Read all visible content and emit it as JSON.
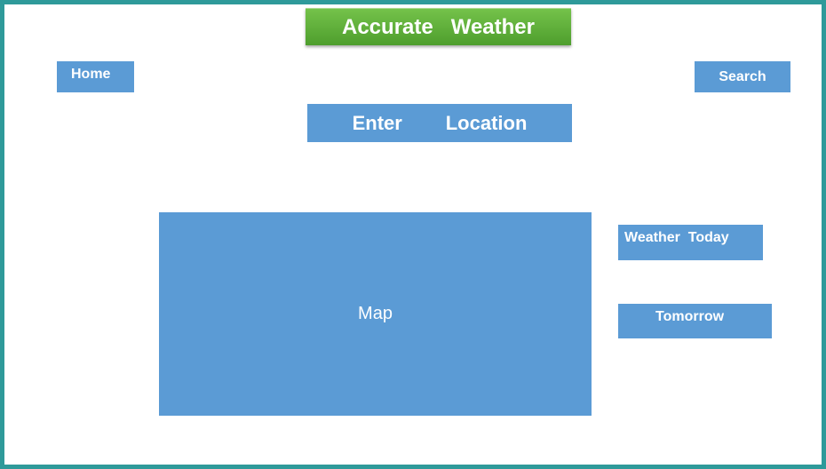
{
  "header": {
    "title": "Accurate   Weather"
  },
  "nav": {
    "home_label": "Home",
    "search_label": "Search"
  },
  "location": {
    "label": "Enter        Location"
  },
  "map": {
    "label": "Map"
  },
  "forecast": {
    "today_label": "Weather  Today",
    "tomorrow_label": "Tomorrow"
  },
  "colors": {
    "frame": "#2e9a9a",
    "banner": "#5aae36",
    "button_blue": "#5b9bd5",
    "text": "#ffffff"
  }
}
